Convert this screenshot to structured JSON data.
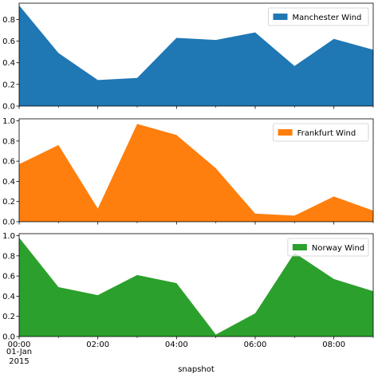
{
  "chart_data": {
    "type": "area",
    "xlabel": "snapshot",
    "x_tick_labels": [
      "00:00",
      "02:00",
      "04:00",
      "06:00",
      "08:00"
    ],
    "x_date_label": [
      "01-Jan",
      "2015"
    ],
    "x": [
      0,
      1,
      2,
      3,
      4,
      5,
      6,
      7,
      8,
      9
    ],
    "x_hours": [
      "00:00",
      "01:00",
      "02:00",
      "03:00",
      "04:00",
      "05:00",
      "06:00",
      "07:00",
      "08:00",
      "09:00"
    ],
    "panels": [
      {
        "series": [
          {
            "name": "Manchester Wind",
            "color": "#1f77b4",
            "values": [
              0.93,
              0.49,
              0.24,
              0.26,
              0.63,
              0.61,
              0.68,
              0.37,
              0.62,
              0.52
            ]
          }
        ],
        "ylim": [
          0,
          0.95
        ],
        "y_ticks": [
          "0.0",
          "0.2",
          "0.4",
          "0.6",
          "0.8"
        ],
        "y_tick_values": [
          0,
          0.2,
          0.4,
          0.6,
          0.8
        ],
        "legend_position": "top-right"
      },
      {
        "series": [
          {
            "name": "Frankfurt Wind",
            "color": "#ff7f0e",
            "values": [
              0.57,
              0.76,
              0.13,
              0.97,
              0.86,
              0.53,
              0.08,
              0.06,
              0.25,
              0.11
            ]
          }
        ],
        "ylim": [
          0,
          1.02
        ],
        "y_ticks": [
          "0.0",
          "0.2",
          "0.4",
          "0.6",
          "0.8",
          "1.0"
        ],
        "y_tick_values": [
          0,
          0.2,
          0.4,
          0.6,
          0.8,
          1.0
        ],
        "legend_position": "top-right"
      },
      {
        "series": [
          {
            "name": "Norway Wind",
            "color": "#2ca02c",
            "values": [
              0.98,
              0.49,
              0.41,
              0.61,
              0.53,
              0.02,
              0.23,
              0.83,
              0.57,
              0.45
            ]
          }
        ],
        "ylim": [
          0,
          1.02
        ],
        "y_ticks": [
          "0.0",
          "0.2",
          "0.4",
          "0.6",
          "0.8",
          "1.0"
        ],
        "y_tick_values": [
          0,
          0.2,
          0.4,
          0.6,
          0.8,
          1.0
        ],
        "legend_position": "top-right"
      }
    ]
  }
}
